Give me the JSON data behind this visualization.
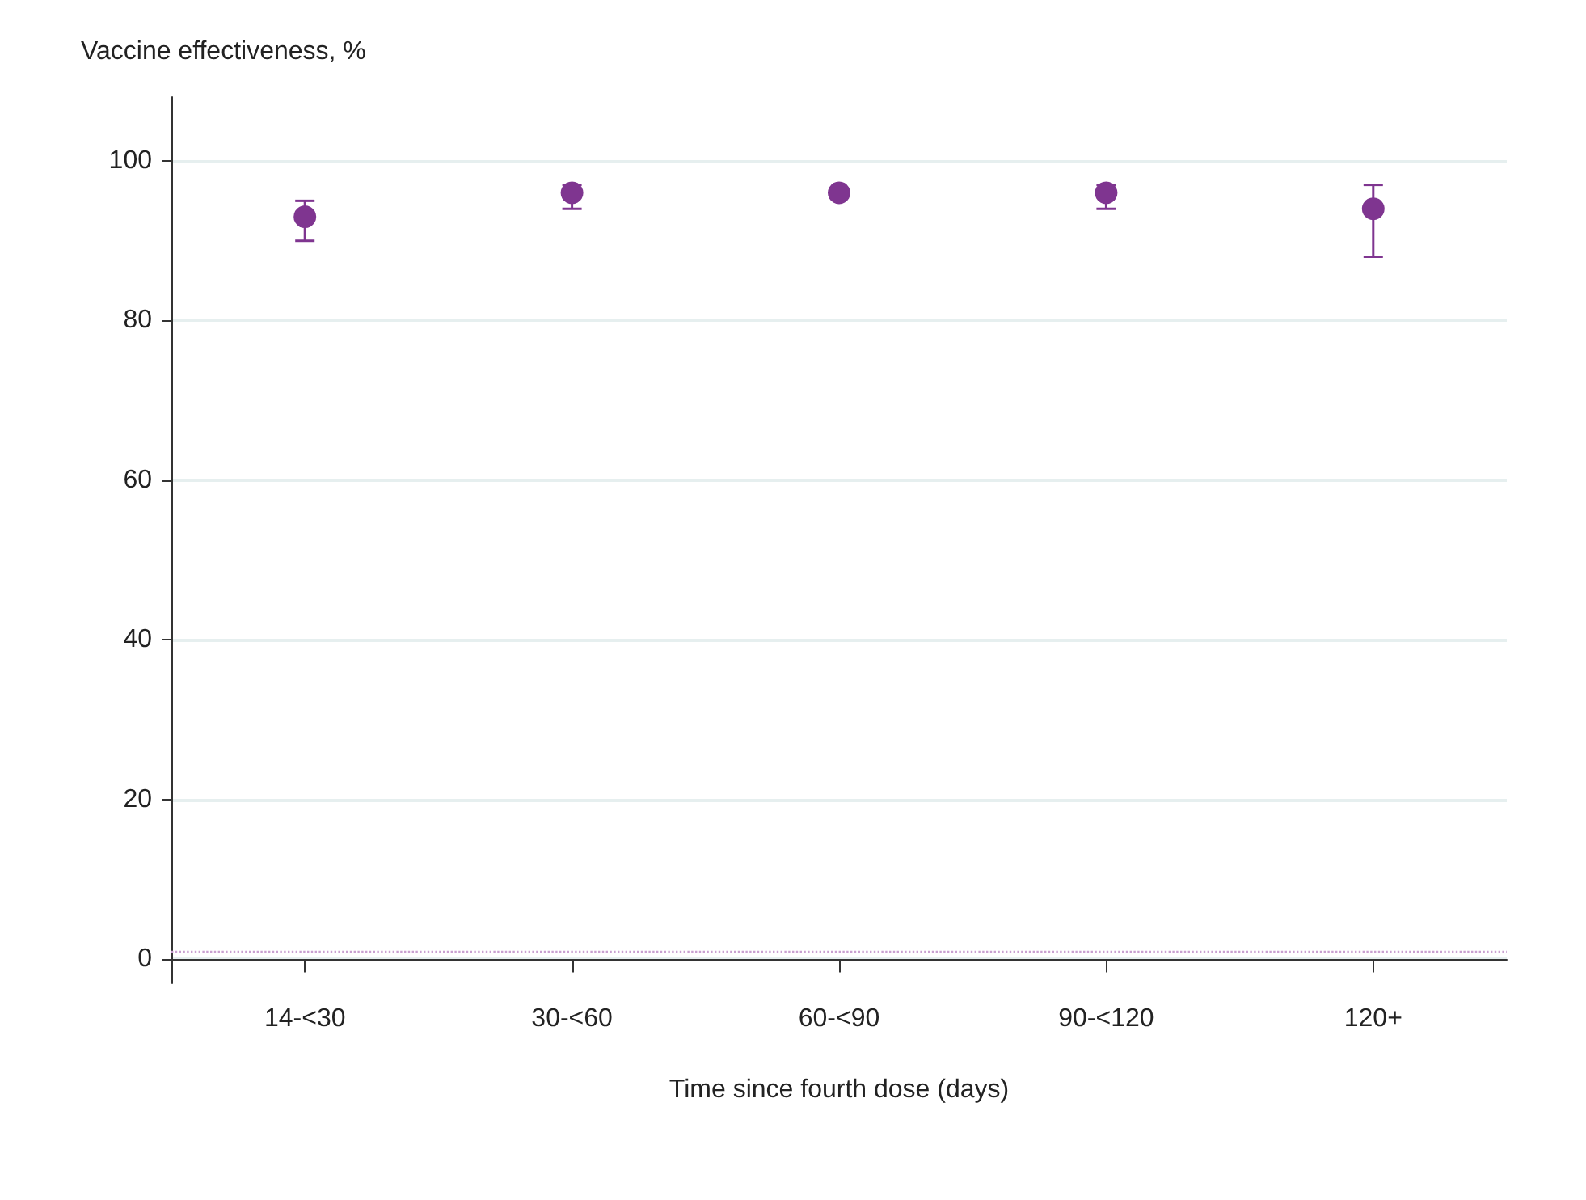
{
  "chart_data": {
    "type": "scatter",
    "ylabel": "Vaccine effectiveness, %",
    "xlabel": "Time since fourth dose (days)",
    "categories": [
      "14-<30",
      "30-<60",
      "60-<90",
      "90-<120",
      "120+"
    ],
    "series": [
      {
        "color": "#7f3590",
        "values": [
          93,
          96,
          96,
          96,
          94
        ],
        "errors": [
          [
            90,
            95
          ],
          [
            94,
            97
          ],
          null,
          [
            94,
            97
          ],
          [
            88,
            97
          ]
        ]
      }
    ],
    "marker": "circle",
    "ylim": [
      -3,
      108
    ],
    "yticks": [
      0,
      20,
      40,
      60,
      80,
      100
    ],
    "grid": "y",
    "ref_lines": [
      {
        "axis": "y",
        "value": 1,
        "color": "#c9a0d0",
        "line_style": "dotted"
      }
    ]
  }
}
